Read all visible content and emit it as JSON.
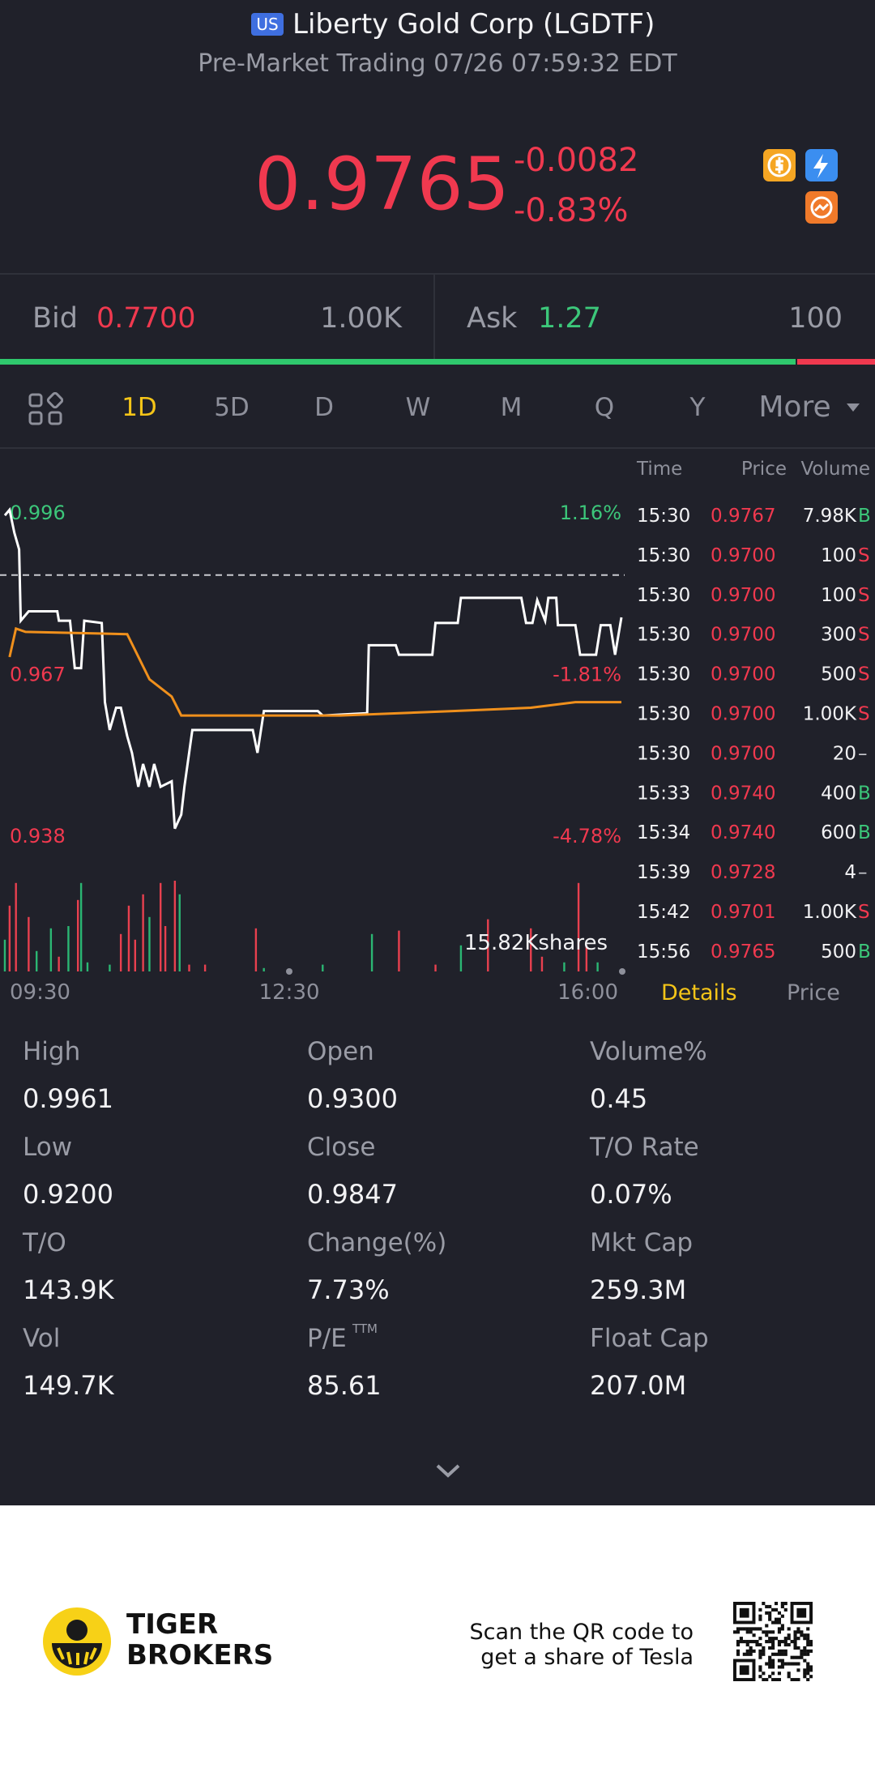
{
  "header": {
    "badge": "US",
    "title": "Liberty Gold Corp (LGDTF)",
    "subtitle": "Pre-Market Trading 07/26 07:59:32 EDT"
  },
  "quote": {
    "price": "0.9765",
    "change": "-0.0082",
    "change_pct": "-0.83%"
  },
  "bid": {
    "label": "Bid",
    "price": "0.7700",
    "size": "1.00K"
  },
  "ask": {
    "label": "Ask",
    "price": "1.27",
    "size": "100"
  },
  "period_tabs": [
    "1D",
    "5D",
    "D",
    "W",
    "M",
    "Q",
    "Y",
    "More"
  ],
  "chart_data": {
    "type": "line",
    "xlim": [
      "09:30",
      "16:00"
    ],
    "xticks": [
      "09:30",
      "12:30",
      "16:00"
    ],
    "ylim": [
      0.938,
      0.996
    ],
    "yticks": [
      0.996,
      0.967,
      0.938
    ],
    "ytick_change": [
      "1.16%",
      "-1.81%",
      "-4.78%"
    ],
    "reference_line": 0.9847,
    "series": [
      {
        "color": "#ffffff",
        "x": [
          "09:31",
          "09:34",
          "09:37",
          "09:40",
          "09:41",
          "09:46",
          "10:04",
          "10:05",
          "10:12",
          "10:15",
          "10:19",
          "10:21",
          "10:32",
          "10:34",
          "10:37",
          "10:41",
          "10:44",
          "10:48",
          "10:51",
          "10:55",
          "10:58",
          "11:02",
          "11:05",
          "11:09",
          "11:16",
          "11:18",
          "11:22",
          "11:24",
          "11:29",
          "12:07",
          "12:10",
          "12:14",
          "12:48",
          "12:51",
          "13:19",
          "13:20",
          "13:37",
          "13:39",
          "14:00",
          "14:02",
          "14:16",
          "14:18",
          "14:56",
          "14:59",
          "15:03",
          "15:06",
          "15:11",
          "15:13",
          "15:18",
          "15:19",
          "15:30",
          "15:33",
          "15:43",
          "15:46",
          "15:52",
          "15:55",
          "15:59"
        ],
        "values": [
          0.9954,
          0.9964,
          0.9923,
          0.9893,
          0.9765,
          0.9782,
          0.9782,
          0.9765,
          0.9765,
          0.968,
          0.968,
          0.9765,
          0.9761,
          0.9619,
          0.9569,
          0.9609,
          0.9609,
          0.9558,
          0.9528,
          0.9467,
          0.9508,
          0.9467,
          0.9508,
          0.9467,
          0.9477,
          0.9392,
          0.9417,
          0.9467,
          0.9569,
          0.9569,
          0.9528,
          0.9603,
          0.9603,
          0.9595,
          0.9599,
          0.9721,
          0.9721,
          0.9704,
          0.9704,
          0.9761,
          0.9761,
          0.9806,
          0.9806,
          0.9761,
          0.9761,
          0.9802,
          0.9765,
          0.9806,
          0.9806,
          0.9757,
          0.9757,
          0.9704,
          0.9704,
          0.9757,
          0.9757,
          0.9704,
          0.9771
        ]
      },
      {
        "color": "#f0901c",
        "x": [
          "09:34",
          "09:38",
          "09:44",
          "10:48",
          "11:02",
          "11:16",
          "11:22",
          "13:02",
          "14:13",
          "15:02",
          "15:30",
          "15:59"
        ],
        "values": [
          0.97,
          0.9751,
          0.9745,
          0.9741,
          0.966,
          0.9629,
          0.9595,
          0.9595,
          0.9603,
          0.9609,
          0.9619,
          0.9619
        ]
      }
    ],
    "volume": {
      "ylim": [
        0,
        15820
      ],
      "yticks": [
        {
          "value": 15820,
          "label": "15.82Kshares"
        }
      ],
      "x": [
        "09:31",
        "09:34",
        "09:38",
        "09:46",
        "09:51",
        "10:00",
        "10:05",
        "10:11",
        "10:17",
        "10:19",
        "10:23",
        "10:37",
        "10:44",
        "10:49",
        "10:53",
        "10:58",
        "11:02",
        "11:09",
        "11:12",
        "11:18",
        "11:21",
        "11:27",
        "11:37",
        "12:09",
        "12:14",
        "12:51",
        "13:22",
        "13:39",
        "14:02",
        "14:18",
        "14:35",
        "15:02",
        "15:09",
        "15:23",
        "15:32",
        "15:37",
        "15:44"
      ],
      "values": [
        5537,
        11470,
        15425,
        9492,
        3560,
        7515,
        2571,
        7910,
        12458,
        15425,
        1582,
        1187,
        6526,
        11470,
        5537,
        13447,
        9492,
        15425,
        7910,
        15820,
        13447,
        1187,
        1187,
        7515,
        593,
        1187,
        6526,
        7119,
        1187,
        4548,
        9097,
        7515,
        2571,
        1582,
        15425,
        4548,
        1582
      ],
      "colors": [
        "#2bb673",
        "#e8404f",
        "#e8404f",
        "#e8404f",
        "#2bb673",
        "#2bb673",
        "#e8404f",
        "#2bb673",
        "#e8404f",
        "#2bb673",
        "#2bb673",
        "#2bb673",
        "#e8404f",
        "#e8404f",
        "#e8404f",
        "#e8404f",
        "#2bb673",
        "#e8404f",
        "#e8404f",
        "#e8404f",
        "#2bb673",
        "#e8404f",
        "#e8404f",
        "#e8404f",
        "#2bb673",
        "#2bb673",
        "#2bb673",
        "#e8404f",
        "#e8404f",
        "#2bb673",
        "#e8404f",
        "#e8404f",
        "#e8404f",
        "#2bb673",
        "#e8404f",
        "#e8404f",
        "#2bb673"
      ]
    }
  },
  "trades": {
    "columns": [
      "Time",
      "Price",
      "Volume"
    ],
    "rows": [
      [
        "15:30",
        "0.9767",
        "7.98K",
        "B"
      ],
      [
        "15:30",
        "0.9700",
        "100",
        "S"
      ],
      [
        "15:30",
        "0.9700",
        "100",
        "S"
      ],
      [
        "15:30",
        "0.9700",
        "300",
        "S"
      ],
      [
        "15:30",
        "0.9700",
        "500",
        "S"
      ],
      [
        "15:30",
        "0.9700",
        "1.00K",
        "S"
      ],
      [
        "15:30",
        "0.9700",
        "20",
        "–"
      ],
      [
        "15:33",
        "0.9740",
        "400",
        "B"
      ],
      [
        "15:34",
        "0.9740",
        "600",
        "B"
      ],
      [
        "15:39",
        "0.9728",
        "4",
        "–"
      ],
      [
        "15:42",
        "0.9701",
        "1.00K",
        "S"
      ],
      [
        "15:56",
        "0.9765",
        "500",
        "B"
      ]
    ]
  },
  "panel_tabs": [
    "Details",
    "Price"
  ],
  "stats": [
    {
      "label": "High",
      "value": "0.9961"
    },
    {
      "label": "Open",
      "value": "0.9300"
    },
    {
      "label": "Volume%",
      "value": "0.45"
    },
    {
      "label": "Low",
      "value": "0.9200"
    },
    {
      "label": "Close",
      "value": "0.9847"
    },
    {
      "label": "T/O Rate",
      "value": "0.07%"
    },
    {
      "label": "T/O",
      "value": "143.9K"
    },
    {
      "label": "Change(%)",
      "value": "7.73%"
    },
    {
      "label": "Mkt Cap",
      "value": "259.3M"
    },
    {
      "label": "Vol",
      "value": "149.7K"
    },
    {
      "label": "P/E",
      "sup": "TTM",
      "value": "85.61"
    },
    {
      "label": "Float Cap",
      "value": "207.0M"
    }
  ],
  "footer": {
    "brand": [
      "TIGER",
      "BROKERS"
    ],
    "promo": [
      "Scan the QR code to",
      "get a share of Tesla"
    ]
  }
}
